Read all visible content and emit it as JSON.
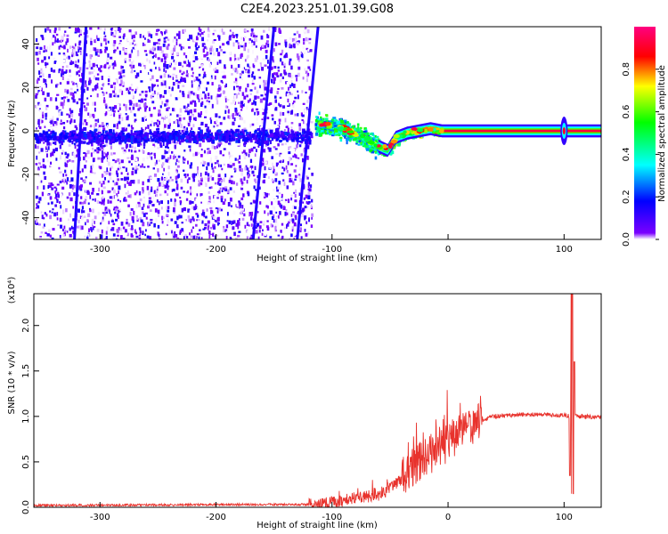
{
  "title": "C2E4.2023.251.01.39.G08",
  "chart_data": [
    {
      "type": "heatmap",
      "xlabel": "Height of straight line (km)",
      "ylabel": "Frequency (Hz)",
      "xlim": [
        -357,
        132
      ],
      "ylim": [
        -50,
        48
      ],
      "x_ticks": [
        -300,
        -200,
        -100,
        0,
        100
      ],
      "x_tick_labels": [
        "-300",
        "-200",
        "-100",
        "0",
        "100"
      ],
      "y_ticks": [
        -40,
        -20,
        0,
        20,
        40
      ],
      "y_tick_labels": [
        "-40",
        "-20",
        "0",
        "20",
        "40"
      ],
      "colorbar": {
        "label": "Normalized spectral amplitude",
        "range": [
          0,
          1
        ],
        "ticks": [
          0.0,
          0.2,
          0.4,
          0.6,
          0.8
        ],
        "tick_labels": [
          "0.0",
          "0.2",
          "0.4",
          "0.6",
          "0.8"
        ],
        "colors": [
          "#ffffff",
          "#7a00ff",
          "#0000ff",
          "#00ffff",
          "#00ff00",
          "#ffff00",
          "#ff0000",
          "#ff0080"
        ]
      },
      "features": {
        "noise_region_x": [
          -357,
          -118
        ],
        "spectral_line": [
          {
            "x": -110,
            "f": 3
          },
          {
            "x": -95,
            "f": 2
          },
          {
            "x": -80,
            "f": -1
          },
          {
            "x": -70,
            "f": -4
          },
          {
            "x": -60,
            "f": -7
          },
          {
            "x": -52,
            "f": -9
          },
          {
            "x": -45,
            "f": -3
          },
          {
            "x": -35,
            "f": -1
          },
          {
            "x": -25,
            "f": 0
          },
          {
            "x": -15,
            "f": 1
          },
          {
            "x": -5,
            "f": 0
          },
          {
            "x": 0,
            "f": 0
          },
          {
            "x": 132,
            "f": 0
          }
        ],
        "streaks": [
          {
            "x_top": -312,
            "x_bottom": -322
          },
          {
            "x_top": -150,
            "x_bottom": -168
          },
          {
            "x_top": -112,
            "x_bottom": -130
          }
        ],
        "spike_x": 100
      }
    },
    {
      "type": "line",
      "xlabel": "Height of straight line (km)",
      "ylabel": "SNR (10 * v/v)",
      "y_multiplier": "(x10⁴)",
      "xlim": [
        -357,
        132
      ],
      "ylim": [
        0,
        2.35
      ],
      "x_ticks": [
        -300,
        -200,
        -100,
        0,
        100
      ],
      "x_tick_labels": [
        "-300",
        "-200",
        "-100",
        "0",
        "100"
      ],
      "y_ticks": [
        0.0,
        0.5,
        1.0,
        1.5,
        2.0
      ],
      "y_tick_labels": [
        "0.0",
        "0.5",
        "1.0",
        "1.5",
        "2.0"
      ],
      "series": [
        {
          "color": "#e8322c",
          "envelope": [
            {
              "x": -357,
              "y": 0.02
            },
            {
              "x": -200,
              "y": 0.03
            },
            {
              "x": -120,
              "y": 0.03
            },
            {
              "x": -100,
              "y": 0.05
            },
            {
              "x": -80,
              "y": 0.1
            },
            {
              "x": -60,
              "y": 0.14
            },
            {
              "x": -50,
              "y": 0.2
            },
            {
              "x": -40,
              "y": 0.32
            },
            {
              "x": -30,
              "y": 0.45
            },
            {
              "x": -20,
              "y": 0.55
            },
            {
              "x": -10,
              "y": 0.62
            },
            {
              "x": 0,
              "y": 0.72
            },
            {
              "x": 10,
              "y": 0.82
            },
            {
              "x": 20,
              "y": 0.9
            },
            {
              "x": 30,
              "y": 0.96
            },
            {
              "x": 40,
              "y": 1.0
            },
            {
              "x": 60,
              "y": 1.02
            },
            {
              "x": 80,
              "y": 1.02
            },
            {
              "x": 100,
              "y": 1.01
            },
            {
              "x": 132,
              "y": 0.99
            }
          ],
          "spike": {
            "x": 107,
            "max": 2.35,
            "min": 0.15
          }
        }
      ]
    }
  ]
}
